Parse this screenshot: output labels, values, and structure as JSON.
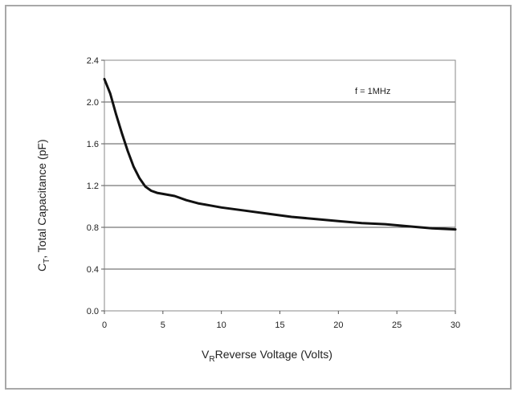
{
  "chart_data": {
    "type": "line",
    "title": "",
    "annotation": "f = 1MHz",
    "xlabel": {
      "main": "V",
      "sub": "R",
      "rest": "Reverse Voltage (Volts)"
    },
    "ylabel": {
      "main": "C",
      "sub": "T",
      "rest": ", Total Capacitance (pF)"
    },
    "xlim": [
      0,
      30
    ],
    "ylim": [
      0.0,
      2.4
    ],
    "x_ticks": [
      0,
      5,
      10,
      15,
      20,
      25,
      30
    ],
    "y_ticks": [
      "0.0",
      "0.4",
      "0.8",
      "1.2",
      "1.6",
      "2.0",
      "2.4"
    ],
    "grid": "horizontal",
    "series": [
      {
        "color": "#111111",
        "x": [
          0,
          0.5,
          1,
          1.5,
          2,
          2.5,
          3,
          3.5,
          4,
          4.5,
          5,
          6,
          7,
          8,
          9,
          10,
          12,
          14,
          16,
          18,
          20,
          22,
          24,
          26,
          28,
          30
        ],
        "y": [
          2.22,
          2.08,
          1.88,
          1.7,
          1.53,
          1.38,
          1.27,
          1.19,
          1.15,
          1.13,
          1.12,
          1.1,
          1.06,
          1.03,
          1.01,
          0.99,
          0.96,
          0.93,
          0.9,
          0.88,
          0.86,
          0.84,
          0.83,
          0.81,
          0.79,
          0.78
        ]
      }
    ]
  }
}
